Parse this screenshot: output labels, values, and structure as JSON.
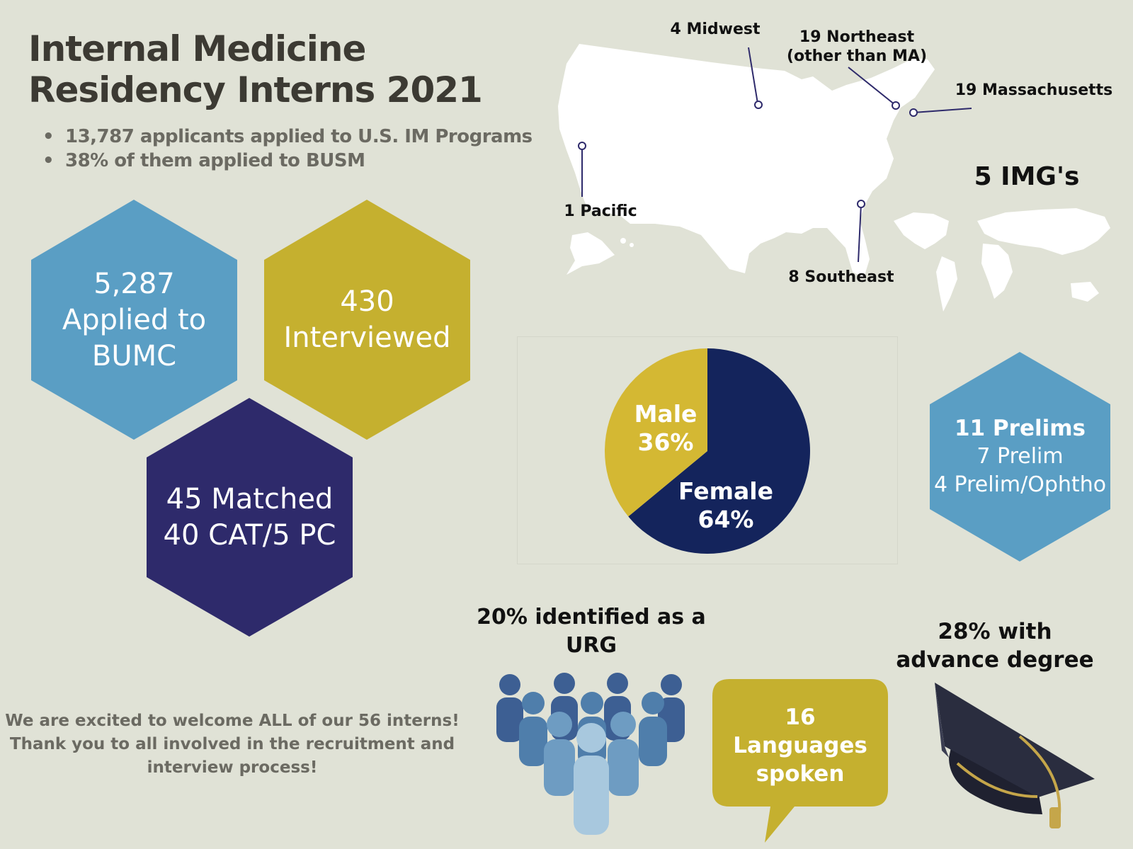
{
  "title": {
    "line1": "Internal Medicine",
    "line2": "Residency Interns 2021"
  },
  "bullets": [
    "13,787 applicants applied to U.S. IM Programs",
    "38% of them applied to BUSM"
  ],
  "hexagons": {
    "applied": {
      "lines": [
        "5,287",
        "Applied to",
        "BUMC"
      ],
      "color": "#5a9ec4"
    },
    "interviewed": {
      "lines": [
        "430",
        "Interviewed"
      ],
      "color": "#c5b02f"
    },
    "matched": {
      "lines": [
        "45 Matched",
        "40 CAT/5 PC"
      ],
      "color": "#2e2a6b"
    },
    "prelims": {
      "heading": "11 Prelims",
      "lines": [
        "7 Prelim",
        "4 Prelim/Ophtho"
      ],
      "color": "#5a9ec4"
    }
  },
  "map": {
    "midwest": "4 Midwest",
    "northeast": [
      "19 Northeast",
      "(other than MA)"
    ],
    "massachusetts": "19 Massachusetts",
    "pacific": "1 Pacific",
    "southeast": "8 Southeast",
    "img": "5 IMG's"
  },
  "gender_pie": {
    "slices": [
      {
        "label": "Female",
        "percent": 64,
        "text": "64%",
        "color": "#14245c"
      },
      {
        "label": "Male",
        "percent": 36,
        "text": "36%",
        "color": "#d4b833"
      }
    ]
  },
  "urg": {
    "lines": [
      "20% identified as a",
      "URG"
    ]
  },
  "languages": {
    "lines": [
      "16",
      "Languages",
      "spoken"
    ],
    "color": "#c5b02f"
  },
  "advance_degree": {
    "lines": [
      "28% with",
      "advance degree"
    ]
  },
  "welcome": {
    "lines": [
      "We are excited to welcome ALL of our 56 interns!",
      "Thank you to all involved in the recruitment and",
      "interview process!"
    ]
  },
  "icons": [
    "people-group-icon",
    "graduation-cap-icon",
    "usa-map-icon",
    "world-map-icon"
  ]
}
